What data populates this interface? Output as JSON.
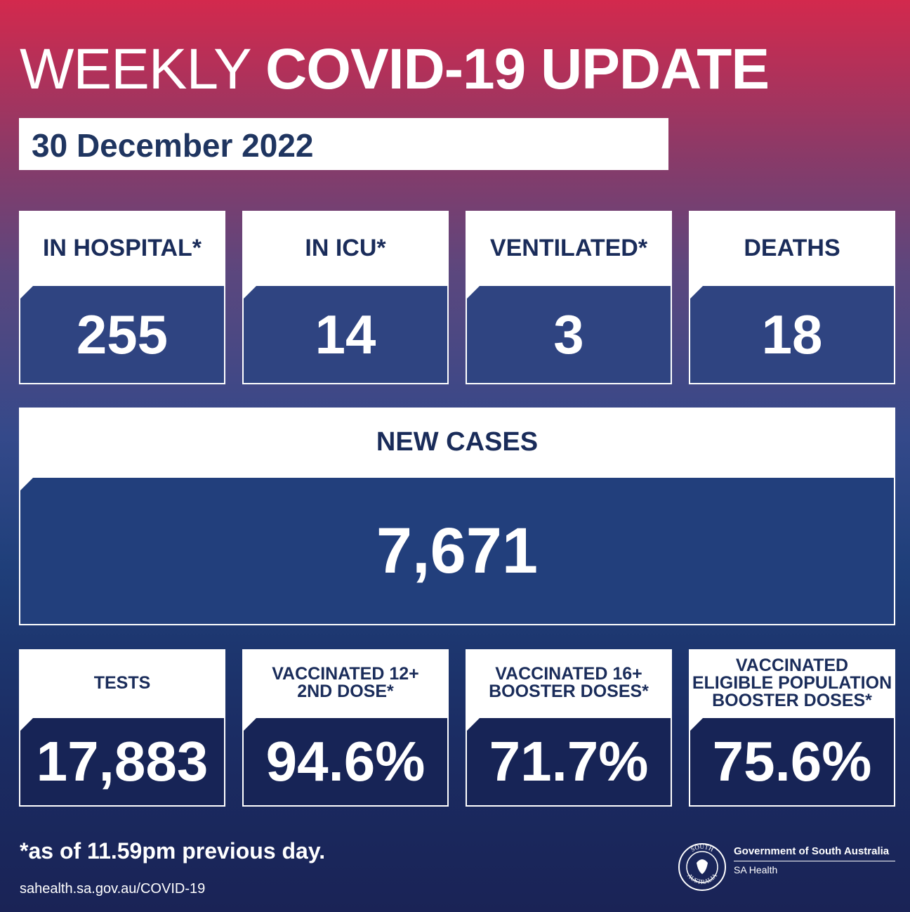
{
  "header": {
    "title_light": "WEEKLY",
    "title_bold": "COVID-19 UPDATE",
    "date": "30 December 2022"
  },
  "stats": [
    {
      "label": [
        "IN HOSPITAL*"
      ],
      "value": "255"
    },
    {
      "label": [
        "IN ICU*"
      ],
      "value": "14"
    },
    {
      "label": [
        "VENTILATED*"
      ],
      "value": "3"
    },
    {
      "label": [
        "DEATHS"
      ],
      "value": "18"
    }
  ],
  "new_cases": {
    "label": [
      "NEW CASES"
    ],
    "value": "7,671"
  },
  "vaccination": [
    {
      "label": [
        "TESTS"
      ],
      "value": "17,883"
    },
    {
      "label": [
        "VACCINATED 12+",
        "2ND DOSE*"
      ],
      "value": "94.6%"
    },
    {
      "label": [
        "VACCINATED 16+",
        "BOOSTER DOSES*"
      ],
      "value": "71.7%"
    },
    {
      "label": [
        "VACCINATED",
        "ELIGIBLE POPULATION",
        "BOOSTER DOSES*"
      ],
      "value": "75.6%"
    }
  ],
  "footer": {
    "note": "*as of 11.59pm previous day.",
    "url": "sahealth.sa.gov.au/COVID-19",
    "government": "Government of South Australia",
    "department": "SA Health",
    "seal": [
      "SOUTH",
      "AUSTRALIA"
    ]
  }
}
